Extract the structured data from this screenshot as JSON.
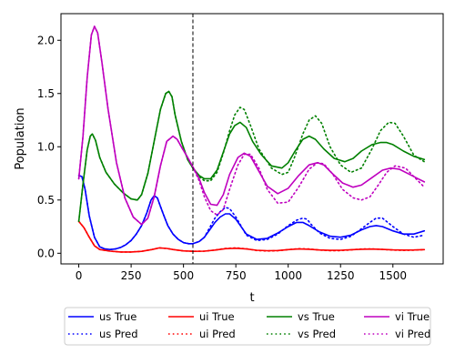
{
  "chart_data": {
    "type": "line",
    "title": "",
    "xlabel": "t",
    "ylabel": "Population",
    "xlim": [
      -85,
      1740
    ],
    "ylim": [
      -0.1,
      2.25
    ],
    "xticks": [
      0,
      250,
      500,
      750,
      1000,
      1250,
      1500
    ],
    "yticks": [
      0.0,
      0.5,
      1.0,
      1.5,
      2.0
    ],
    "xtick_labels": [
      "0",
      "250",
      "500",
      "750",
      "1000",
      "1250",
      "1500"
    ],
    "ytick_labels": [
      "0.0",
      "0.5",
      "1.0",
      "1.5",
      "2.0"
    ],
    "grid": false,
    "legend_position": "bottom-outside",
    "legend_columns": 4,
    "vline": {
      "x": 545,
      "style": "dashed",
      "color": "#000000"
    },
    "series": [
      {
        "name": "us True",
        "color": "#0000ff",
        "style": "solid",
        "x": [
          0,
          15,
          30,
          50,
          75,
          100,
          125,
          150,
          175,
          200,
          225,
          250,
          275,
          300,
          325,
          345,
          360,
          375,
          390,
          405,
          425,
          450,
          475,
          500,
          525,
          545,
          575,
          600,
          625,
          650,
          675,
          700,
          720,
          750,
          800,
          850,
          900,
          950,
          1000,
          1040,
          1070,
          1100,
          1150,
          1200,
          1250,
          1300,
          1350,
          1390,
          1420,
          1450,
          1500,
          1550,
          1600,
          1650
        ],
        "y": [
          0.73,
          0.72,
          0.6,
          0.35,
          0.15,
          0.06,
          0.04,
          0.035,
          0.04,
          0.055,
          0.08,
          0.12,
          0.18,
          0.26,
          0.38,
          0.5,
          0.54,
          0.52,
          0.44,
          0.36,
          0.26,
          0.18,
          0.13,
          0.1,
          0.09,
          0.09,
          0.11,
          0.15,
          0.22,
          0.29,
          0.34,
          0.37,
          0.37,
          0.32,
          0.18,
          0.13,
          0.14,
          0.19,
          0.25,
          0.29,
          0.29,
          0.26,
          0.2,
          0.16,
          0.15,
          0.17,
          0.22,
          0.25,
          0.26,
          0.25,
          0.21,
          0.18,
          0.18,
          0.21
        ]
      },
      {
        "name": "us Pred",
        "color": "#0000ff",
        "style": "dotted",
        "x": [
          0,
          15,
          30,
          50,
          75,
          100,
          125,
          150,
          175,
          200,
          225,
          250,
          275,
          300,
          325,
          345,
          360,
          375,
          390,
          405,
          425,
          450,
          475,
          500,
          525,
          545,
          575,
          600,
          625,
          650,
          675,
          700,
          720,
          750,
          800,
          850,
          900,
          950,
          1000,
          1040,
          1070,
          1090,
          1110,
          1150,
          1200,
          1250,
          1300,
          1350,
          1390,
          1420,
          1450,
          1500,
          1550,
          1600,
          1650
        ],
        "y": [
          0.73,
          0.72,
          0.6,
          0.35,
          0.15,
          0.06,
          0.04,
          0.035,
          0.04,
          0.055,
          0.08,
          0.12,
          0.18,
          0.26,
          0.38,
          0.5,
          0.54,
          0.52,
          0.44,
          0.36,
          0.26,
          0.18,
          0.13,
          0.1,
          0.09,
          0.09,
          0.11,
          0.15,
          0.24,
          0.33,
          0.39,
          0.43,
          0.42,
          0.34,
          0.17,
          0.12,
          0.13,
          0.18,
          0.26,
          0.31,
          0.33,
          0.32,
          0.27,
          0.19,
          0.14,
          0.13,
          0.16,
          0.23,
          0.29,
          0.33,
          0.33,
          0.25,
          0.18,
          0.15,
          0.17
        ]
      },
      {
        "name": "ui True",
        "color": "#ff0000",
        "style": "solid",
        "x": [
          0,
          25,
          50,
          75,
          100,
          150,
          200,
          250,
          300,
          350,
          385,
          420,
          450,
          500,
          550,
          600,
          650,
          700,
          750,
          800,
          850,
          900,
          950,
          1000,
          1050,
          1100,
          1150,
          1200,
          1250,
          1300,
          1350,
          1400,
          1450,
          1500,
          1550,
          1600,
          1650
        ],
        "y": [
          0.3,
          0.24,
          0.15,
          0.07,
          0.035,
          0.02,
          0.012,
          0.012,
          0.018,
          0.035,
          0.05,
          0.045,
          0.035,
          0.022,
          0.018,
          0.02,
          0.03,
          0.043,
          0.047,
          0.04,
          0.028,
          0.024,
          0.026,
          0.034,
          0.04,
          0.038,
          0.031,
          0.027,
          0.028,
          0.033,
          0.038,
          0.039,
          0.036,
          0.032,
          0.03,
          0.031,
          0.034
        ]
      },
      {
        "name": "ui Pred",
        "color": "#ff0000",
        "style": "dotted",
        "x": [
          0,
          25,
          50,
          75,
          100,
          150,
          200,
          250,
          300,
          350,
          385,
          420,
          450,
          500,
          550,
          600,
          650,
          700,
          750,
          800,
          850,
          900,
          950,
          1000,
          1050,
          1100,
          1150,
          1200,
          1250,
          1300,
          1350,
          1400,
          1450,
          1500,
          1550,
          1600,
          1650
        ],
        "y": [
          0.3,
          0.24,
          0.15,
          0.07,
          0.035,
          0.02,
          0.012,
          0.012,
          0.018,
          0.035,
          0.05,
          0.045,
          0.035,
          0.022,
          0.018,
          0.02,
          0.03,
          0.045,
          0.05,
          0.042,
          0.026,
          0.021,
          0.024,
          0.034,
          0.043,
          0.04,
          0.03,
          0.024,
          0.025,
          0.032,
          0.04,
          0.041,
          0.036,
          0.03,
          0.027,
          0.029,
          0.034
        ]
      },
      {
        "name": "vs True",
        "color": "#008000",
        "style": "solid",
        "x": [
          0,
          20,
          40,
          55,
          65,
          80,
          100,
          130,
          170,
          210,
          250,
          280,
          300,
          330,
          360,
          390,
          415,
          430,
          445,
          460,
          490,
          520,
          545,
          575,
          600,
          630,
          660,
          690,
          720,
          745,
          770,
          800,
          830,
          870,
          920,
          970,
          1000,
          1030,
          1070,
          1100,
          1130,
          1170,
          1220,
          1270,
          1310,
          1350,
          1400,
          1440,
          1470,
          1500,
          1550,
          1600,
          1650
        ],
        "y": [
          0.3,
          0.65,
          0.97,
          1.1,
          1.12,
          1.06,
          0.9,
          0.76,
          0.65,
          0.57,
          0.51,
          0.5,
          0.55,
          0.75,
          1.05,
          1.35,
          1.5,
          1.52,
          1.47,
          1.3,
          1.05,
          0.88,
          0.8,
          0.73,
          0.7,
          0.7,
          0.78,
          0.95,
          1.12,
          1.2,
          1.23,
          1.18,
          1.05,
          0.93,
          0.82,
          0.8,
          0.85,
          0.95,
          1.07,
          1.1,
          1.07,
          0.98,
          0.89,
          0.86,
          0.89,
          0.96,
          1.02,
          1.04,
          1.04,
          1.02,
          0.96,
          0.91,
          0.88
        ]
      },
      {
        "name": "vs Pred",
        "color": "#008000",
        "style": "dotted",
        "x": [
          0,
          20,
          40,
          55,
          65,
          80,
          100,
          130,
          170,
          210,
          250,
          280,
          300,
          330,
          360,
          390,
          415,
          430,
          445,
          460,
          490,
          520,
          545,
          575,
          600,
          630,
          660,
          690,
          720,
          745,
          770,
          790,
          820,
          860,
          920,
          970,
          1000,
          1030,
          1070,
          1100,
          1130,
          1160,
          1200,
          1250,
          1300,
          1350,
          1400,
          1440,
          1480,
          1510,
          1550,
          1600,
          1650
        ],
        "y": [
          0.3,
          0.65,
          0.97,
          1.1,
          1.12,
          1.06,
          0.9,
          0.76,
          0.65,
          0.57,
          0.51,
          0.5,
          0.55,
          0.75,
          1.05,
          1.35,
          1.5,
          1.52,
          1.47,
          1.3,
          1.05,
          0.88,
          0.8,
          0.72,
          0.68,
          0.68,
          0.76,
          0.94,
          1.15,
          1.3,
          1.37,
          1.35,
          1.2,
          0.98,
          0.8,
          0.74,
          0.76,
          0.9,
          1.12,
          1.25,
          1.29,
          1.22,
          1.0,
          0.83,
          0.76,
          0.8,
          0.98,
          1.15,
          1.23,
          1.22,
          1.1,
          0.92,
          0.86
        ]
      },
      {
        "name": "vi True",
        "color": "#bf00bf",
        "style": "solid",
        "x": [
          0,
          20,
          40,
          60,
          75,
          90,
          110,
          140,
          180,
          220,
          260,
          300,
          330,
          360,
          390,
          420,
          450,
          470,
          490,
          520,
          545,
          575,
          600,
          630,
          660,
          690,
          720,
          760,
          790,
          820,
          860,
          900,
          950,
          1000,
          1050,
          1100,
          1140,
          1170,
          1210,
          1260,
          1310,
          1350,
          1400,
          1450,
          1490,
          1530,
          1580,
          1620,
          1650
        ],
        "y": [
          0.7,
          1.1,
          1.65,
          2.05,
          2.13,
          2.07,
          1.8,
          1.35,
          0.85,
          0.52,
          0.34,
          0.27,
          0.33,
          0.53,
          0.82,
          1.05,
          1.1,
          1.07,
          1.0,
          0.9,
          0.81,
          0.7,
          0.57,
          0.46,
          0.45,
          0.55,
          0.74,
          0.9,
          0.94,
          0.91,
          0.77,
          0.63,
          0.56,
          0.61,
          0.73,
          0.83,
          0.85,
          0.83,
          0.75,
          0.66,
          0.62,
          0.64,
          0.71,
          0.78,
          0.8,
          0.79,
          0.74,
          0.7,
          0.67
        ]
      },
      {
        "name": "vi Pred",
        "color": "#bf00bf",
        "style": "dotted",
        "x": [
          0,
          20,
          40,
          60,
          75,
          90,
          110,
          140,
          180,
          220,
          260,
          300,
          330,
          360,
          390,
          420,
          450,
          470,
          490,
          520,
          545,
          575,
          600,
          630,
          660,
          690,
          720,
          760,
          790,
          820,
          860,
          900,
          950,
          1000,
          1050,
          1100,
          1140,
          1170,
          1210,
          1260,
          1310,
          1350,
          1390,
          1430,
          1470,
          1510,
          1560,
          1610,
          1650
        ],
        "y": [
          0.7,
          1.1,
          1.65,
          2.05,
          2.13,
          2.07,
          1.8,
          1.35,
          0.85,
          0.52,
          0.34,
          0.27,
          0.33,
          0.53,
          0.82,
          1.05,
          1.1,
          1.07,
          1.0,
          0.9,
          0.81,
          0.68,
          0.53,
          0.4,
          0.36,
          0.41,
          0.6,
          0.83,
          0.93,
          0.93,
          0.8,
          0.6,
          0.47,
          0.48,
          0.62,
          0.79,
          0.85,
          0.84,
          0.75,
          0.6,
          0.52,
          0.5,
          0.53,
          0.64,
          0.76,
          0.82,
          0.8,
          0.7,
          0.62
        ]
      }
    ]
  }
}
